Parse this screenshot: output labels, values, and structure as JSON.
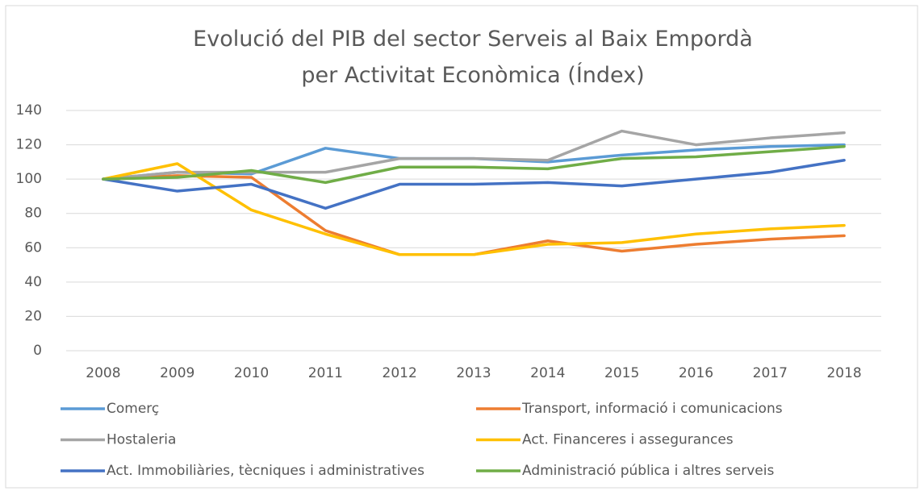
{
  "chart_data": {
    "type": "line",
    "title": "Evolució del PIB del sector Serveis al Baix Empordà per Activitat Econòmica (Índex)",
    "categories": [
      "2008",
      "2009",
      "2010",
      "2011",
      "2012",
      "2013",
      "2014",
      "2015",
      "2016",
      "2017",
      "2018"
    ],
    "series": [
      {
        "name": "Comerç",
        "color": "#5b9bd5",
        "values": [
          100,
          104,
          103,
          118,
          112,
          112,
          110,
          114,
          117,
          119,
          120
        ]
      },
      {
        "name": "Transport, informació i comunicacions",
        "color": "#ed7d31",
        "values": [
          100,
          102,
          101,
          70,
          56,
          56,
          64,
          58,
          62,
          65,
          67
        ]
      },
      {
        "name": "Hostaleria",
        "color": "#a5a5a5",
        "values": [
          100,
          104,
          104,
          104,
          112,
          112,
          111,
          128,
          120,
          124,
          127
        ]
      },
      {
        "name": "Act. Financeres i assegurances",
        "color": "#ffc000",
        "values": [
          100,
          109,
          82,
          68,
          56,
          56,
          62,
          63,
          68,
          71,
          73
        ]
      },
      {
        "name": "Act. Immobiliàries, tècniques i administratives",
        "color": "#4472c4",
        "values": [
          100,
          93,
          97,
          83,
          97,
          97,
          98,
          96,
          100,
          104,
          111
        ]
      },
      {
        "name": "Administració pública i altres serveis",
        "color": "#70ad47",
        "values": [
          100,
          101,
          105,
          98,
          107,
          107,
          106,
          112,
          113,
          116,
          119
        ]
      }
    ],
    "ylim": [
      0,
      140
    ],
    "yticks": [
      0,
      20,
      40,
      60,
      80,
      100,
      120,
      140
    ],
    "grid": true,
    "legend": "bottom"
  }
}
